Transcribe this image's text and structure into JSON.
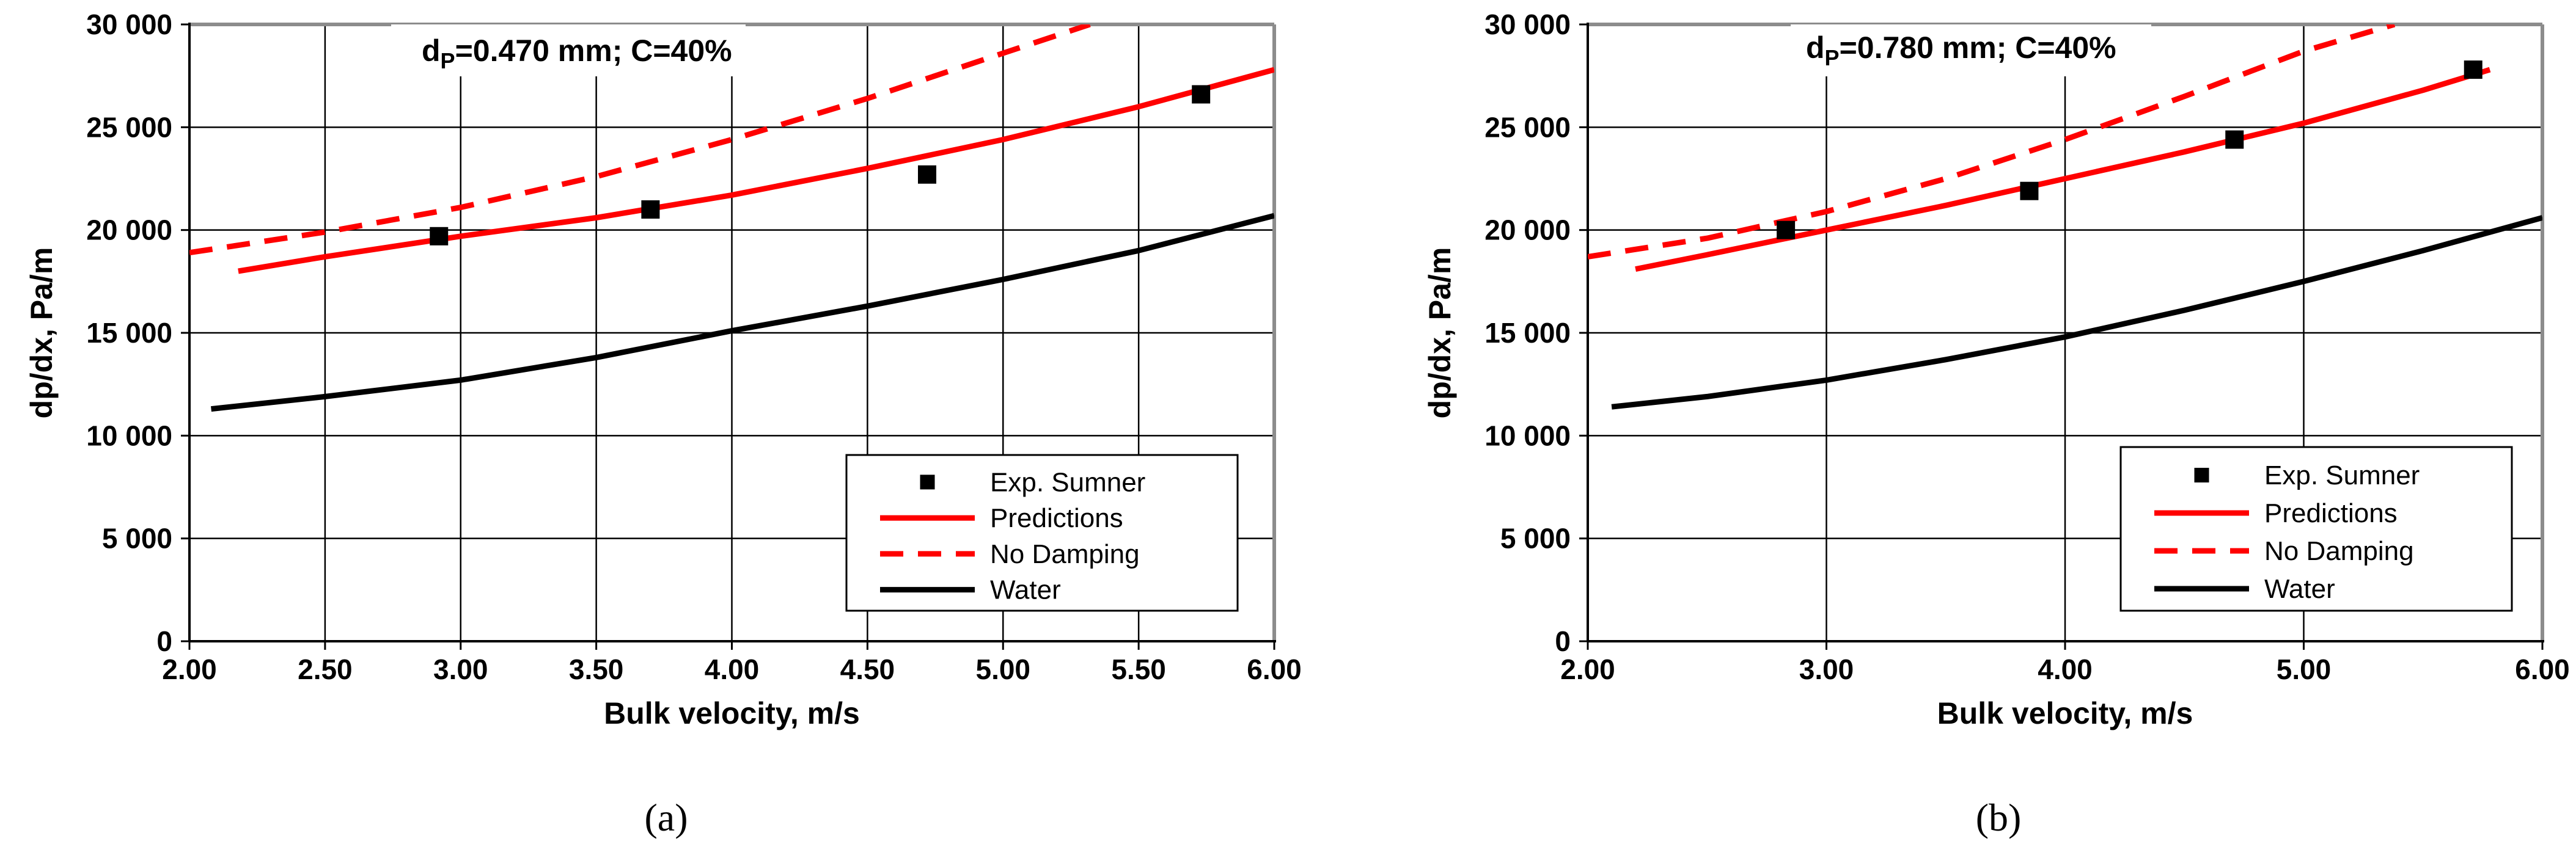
{
  "chart_data": [
    {
      "type": "line",
      "title_main": "d",
      "title_sub": "P",
      "title_rest": "=0.470 mm; C=40%",
      "caption": "(a)",
      "xlabel": "Bulk velocity, m/s",
      "ylabel": "dp/dx, Pa/m",
      "xlim": [
        2.0,
        6.0
      ],
      "ylim": [
        0,
        30000
      ],
      "xticks": [
        2.0,
        2.5,
        3.0,
        3.5,
        4.0,
        4.5,
        5.0,
        5.5,
        6.0
      ],
      "xtick_labels": [
        "2.00",
        "2.50",
        "3.00",
        "3.50",
        "4.00",
        "4.50",
        "5.00",
        "5.50",
        "6.00"
      ],
      "yticks": [
        0,
        5000,
        10000,
        15000,
        20000,
        25000,
        30000
      ],
      "ytick_labels": [
        "0",
        "5 000",
        "10 000",
        "15 000",
        "20 000",
        "25 000",
        "30 000"
      ],
      "grid": true,
      "legend_position": "bottom-right",
      "series": [
        {
          "name": "Exp. Sumner",
          "style": "markers",
          "color": "#000000",
          "x": [
            2.92,
            3.7,
            4.72,
            5.73
          ],
          "y": [
            19700,
            21000,
            22700,
            26600
          ]
        },
        {
          "name": "Predictions",
          "style": "solid",
          "color": "#ff0000",
          "x": [
            2.18,
            2.5,
            3.0,
            3.5,
            4.0,
            4.5,
            5.0,
            5.5,
            6.0
          ],
          "y": [
            18000,
            18700,
            19700,
            20600,
            21700,
            23000,
            24400,
            26000,
            27800
          ]
        },
        {
          "name": "No Damping",
          "style": "dashed",
          "color": "#ff0000",
          "x": [
            2.0,
            2.5,
            3.0,
            3.5,
            4.0,
            4.5,
            5.0,
            5.32
          ],
          "y": [
            18900,
            19900,
            21100,
            22600,
            24400,
            26400,
            28600,
            30000
          ]
        },
        {
          "name": "Water",
          "style": "solid",
          "color": "#000000",
          "x": [
            2.08,
            2.5,
            3.0,
            3.5,
            4.0,
            4.5,
            5.0,
            5.5,
            6.0
          ],
          "y": [
            11300,
            11900,
            12700,
            13800,
            15100,
            16300,
            17600,
            19000,
            20700
          ]
        }
      ]
    },
    {
      "type": "line",
      "title_main": "d",
      "title_sub": "P",
      "title_rest": "=0.780 mm; C=40%",
      "caption": "(b)",
      "xlabel": "Bulk velocity, m/s",
      "ylabel": "dp/dx, Pa/m",
      "xlim": [
        2.0,
        6.0
      ],
      "ylim": [
        0,
        30000
      ],
      "xticks": [
        2.0,
        3.0,
        4.0,
        5.0,
        6.0
      ],
      "xtick_labels": [
        "2.00",
        "3.00",
        "4.00",
        "5.00",
        "6.00"
      ],
      "yticks": [
        0,
        5000,
        10000,
        15000,
        20000,
        25000,
        30000
      ],
      "ytick_labels": [
        "0",
        "5 000",
        "10 000",
        "15 000",
        "20 000",
        "25 000",
        "30 000"
      ],
      "grid": true,
      "legend_position": "bottom-right",
      "series": [
        {
          "name": "Exp. Sumner",
          "style": "markers",
          "color": "#000000",
          "x": [
            2.83,
            3.85,
            4.71,
            5.71
          ],
          "y": [
            20000,
            21900,
            24400,
            27800
          ]
        },
        {
          "name": "Predictions",
          "style": "solid",
          "color": "#ff0000",
          "x": [
            2.2,
            2.5,
            3.0,
            3.5,
            4.0,
            4.5,
            5.0,
            5.5,
            5.78
          ],
          "y": [
            18100,
            18800,
            20000,
            21200,
            22500,
            23800,
            25200,
            26800,
            27800
          ]
        },
        {
          "name": "No Damping",
          "style": "dashed",
          "color": "#ff0000",
          "x": [
            2.0,
            2.5,
            3.0,
            3.5,
            4.0,
            4.5,
            5.0,
            5.38
          ],
          "y": [
            18700,
            19600,
            20900,
            22500,
            24400,
            26500,
            28700,
            30000
          ]
        },
        {
          "name": "Water",
          "style": "solid",
          "color": "#000000",
          "x": [
            2.1,
            2.5,
            3.0,
            3.5,
            4.0,
            4.5,
            5.0,
            5.5,
            6.0
          ],
          "y": [
            11400,
            11900,
            12700,
            13700,
            14800,
            16100,
            17500,
            19000,
            20600
          ]
        }
      ]
    }
  ]
}
